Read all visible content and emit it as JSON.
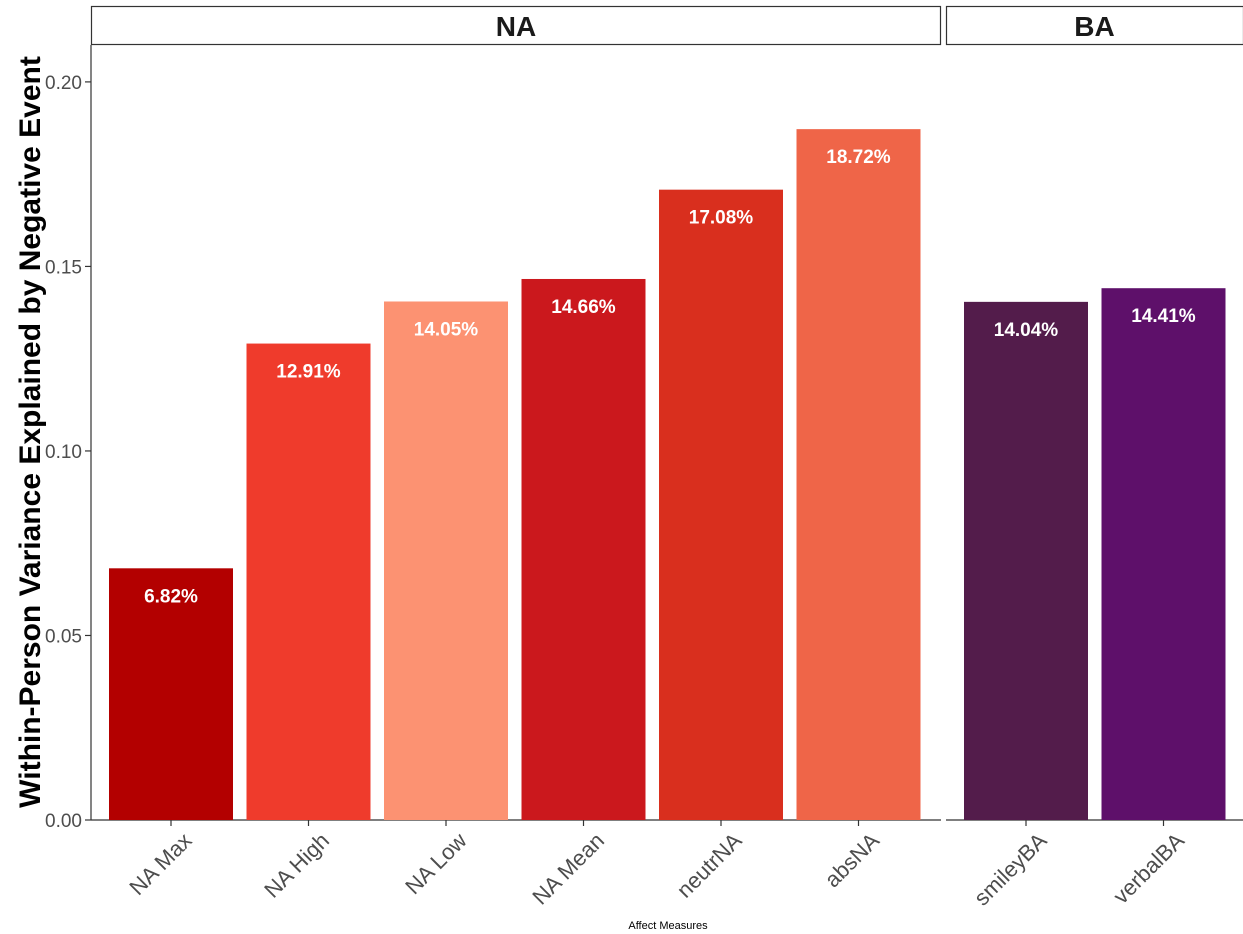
{
  "chart_data": {
    "type": "bar",
    "xlabel": "Affect Measures",
    "ylabel": "Within-Person Variance Explained by Negative Event",
    "ylim": [
      0,
      0.21
    ],
    "yticks": [
      "0.00",
      "0.05",
      "0.10",
      "0.15",
      "0.20"
    ],
    "ytick_values": [
      0,
      0.05,
      0.1,
      0.15,
      0.2
    ],
    "grid": false,
    "legend": "none",
    "panels": [
      {
        "strip": "NA",
        "categories": [
          "NA Max",
          "NA High",
          "NA Low",
          "NA Mean",
          "neutrNA",
          "absNA"
        ],
        "values": [
          0.0682,
          0.1291,
          0.1405,
          0.1466,
          0.1708,
          0.1872
        ],
        "labels": [
          "6.82%",
          "12.91%",
          "14.05%",
          "14.66%",
          "17.08%",
          "18.72%"
        ],
        "colors": [
          "#b30000",
          "#ef3b2c",
          "#fc9272",
          "#cb181d",
          "#d92f1e",
          "#ef6548"
        ]
      },
      {
        "strip": "BA",
        "categories": [
          "smileyBA",
          "verbalBA"
        ],
        "values": [
          0.1404,
          0.1441
        ],
        "labels": [
          "14.04%",
          "14.41%"
        ],
        "colors": [
          "#531c4b",
          "#5e106a"
        ]
      }
    ]
  }
}
